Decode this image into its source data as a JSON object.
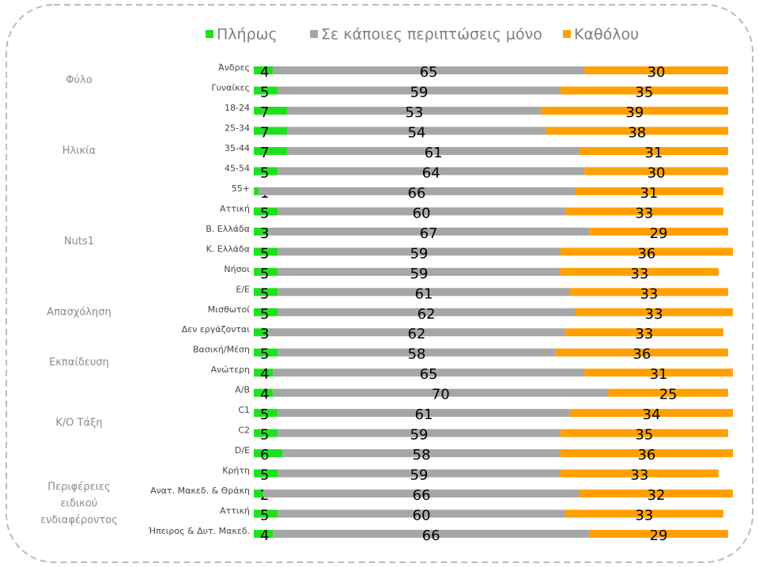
{
  "chart_data": {
    "type": "stacked-bar",
    "orientation": "horizontal",
    "categories": [
      "Άνδρες",
      "Γυναίκες",
      "18-24",
      "25-34",
      "35-44",
      "45-54",
      "55+",
      "Αττική",
      "Β. Ελλάδα",
      "Κ. Ελλάδα",
      "Νήσοι",
      "Ε/Ε",
      "Μισθωτοί",
      "Δεν εργάζονται",
      "Βασική/Μέση",
      "Ανώτερη",
      "Α/Β",
      "C1",
      "C2",
      "D/E",
      "Κρήτη",
      "Ανατ. Μακεδ. & Θράκη",
      "Αττική",
      "Ήπειρος & Δυτ. Μακεδ."
    ],
    "groups": [
      "Φύλο",
      "Ηλικία",
      "Nuts1",
      "Απασχόληση",
      "Εκπαίδευση",
      "Κ/Ο Τάξη",
      [
        "Περιφέρειες",
        "ειδικού",
        "ενδιαφέροντος"
      ]
    ],
    "series": [
      {
        "name": "Πλήρως",
        "color": "#1fe01f",
        "values": [
          4,
          5,
          7,
          7,
          7,
          5,
          1,
          5,
          3,
          5,
          5,
          5,
          5,
          3,
          5,
          4,
          4,
          5,
          5,
          6,
          5,
          2,
          5,
          4
        ]
      },
      {
        "name": "Σε κάποιες περιπτώσεις μόνο",
        "color": "#a6a6a6",
        "values": [
          65,
          59,
          53,
          54,
          61,
          64,
          66,
          60,
          67,
          59,
          59,
          61,
          62,
          62,
          58,
          65,
          70,
          61,
          59,
          58,
          59,
          66,
          60,
          66
        ]
      },
      {
        "name": "Καθόλου",
        "color": "#ffa000",
        "values": [
          30,
          35,
          39,
          38,
          31,
          30,
          31,
          33,
          29,
          36,
          33,
          33,
          33,
          33,
          36,
          31,
          25,
          34,
          35,
          36,
          33,
          32,
          33,
          29
        ]
      }
    ],
    "xlim": [
      0,
      100
    ],
    "legend": "top"
  }
}
